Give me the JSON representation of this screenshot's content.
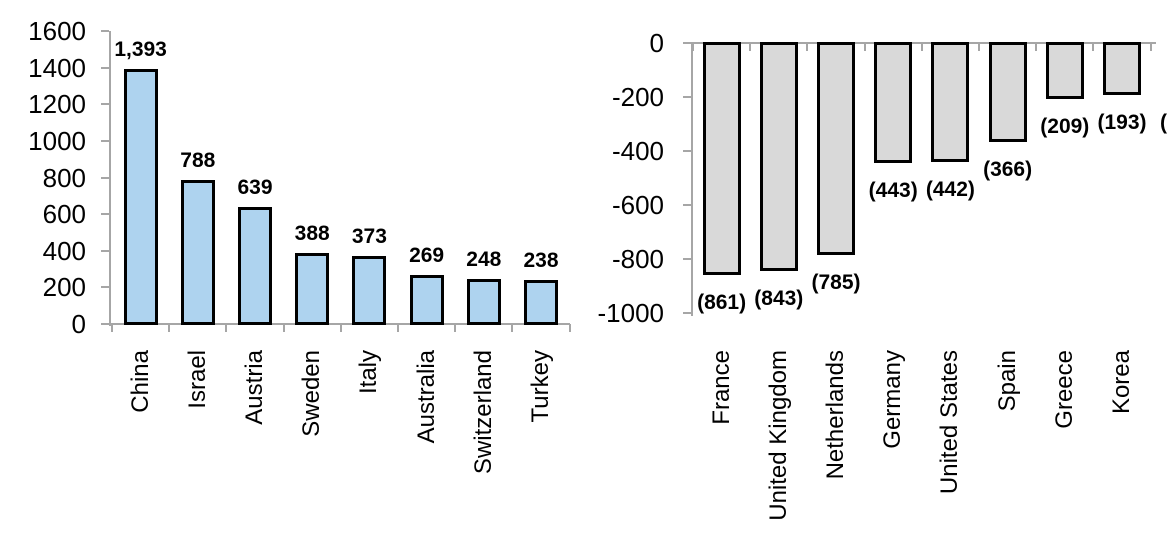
{
  "figure": {
    "description": "Two side-by-side bar charts: positive values (light blue bars) by country on the left, negative values (gray bars, shown in parentheses) by country on the right",
    "background": "#ffffff"
  },
  "chart_data": [
    {
      "type": "bar",
      "title": "",
      "xlabel": "",
      "ylabel": "",
      "categories": [
        "China",
        "Israel",
        "Austria",
        "Sweden",
        "Italy",
        "Australia",
        "Switzerland",
        "Turkey"
      ],
      "values": [
        1393,
        788,
        639,
        388,
        373,
        269,
        248,
        238
      ],
      "value_labels": [
        "1,393",
        "788",
        "639",
        "388",
        "373",
        "269",
        "248",
        "238"
      ],
      "ylim": [
        0,
        1600
      ],
      "y_ticks": [
        0,
        200,
        400,
        600,
        800,
        1000,
        1200,
        1400,
        1600
      ],
      "y_tick_labels": [
        "0",
        "200",
        "400",
        "600",
        "800",
        "1000",
        "1200",
        "1400",
        "1600"
      ],
      "grid": false,
      "legend": null,
      "bar_fill": "#AED3EF",
      "bar_outline": "#000000",
      "axis_color": "#A6A6A6",
      "label_color": "#000000",
      "category_labels_rotated_90": true
    },
    {
      "type": "bar",
      "title": "",
      "xlabel": "",
      "ylabel": "",
      "categories": [
        "France",
        "United Kingdom",
        "Netherlands",
        "Germany",
        "United States",
        "Spain",
        "Greece",
        "Korea"
      ],
      "values": [
        -861,
        -843,
        -785,
        -443,
        -442,
        -366,
        -209,
        -193
      ],
      "value_labels": [
        "(861)",
        "(843)",
        "(785)",
        "(443)",
        "(442)",
        "(366)",
        "(209)",
        "(193)"
      ],
      "truncated_label": "(",
      "ylim": [
        -1000,
        0
      ],
      "y_ticks": [
        0,
        -200,
        -400,
        -600,
        -800,
        -1000
      ],
      "y_tick_labels": [
        "0",
        "-200",
        "-400",
        "-600",
        "-800",
        "-1000"
      ],
      "grid": false,
      "legend": null,
      "bar_fill": "#D9D9D9",
      "bar_outline": "#000000",
      "axis_color": "#A6A6A6",
      "label_color": "#000000",
      "category_labels_rotated_90": true
    }
  ]
}
